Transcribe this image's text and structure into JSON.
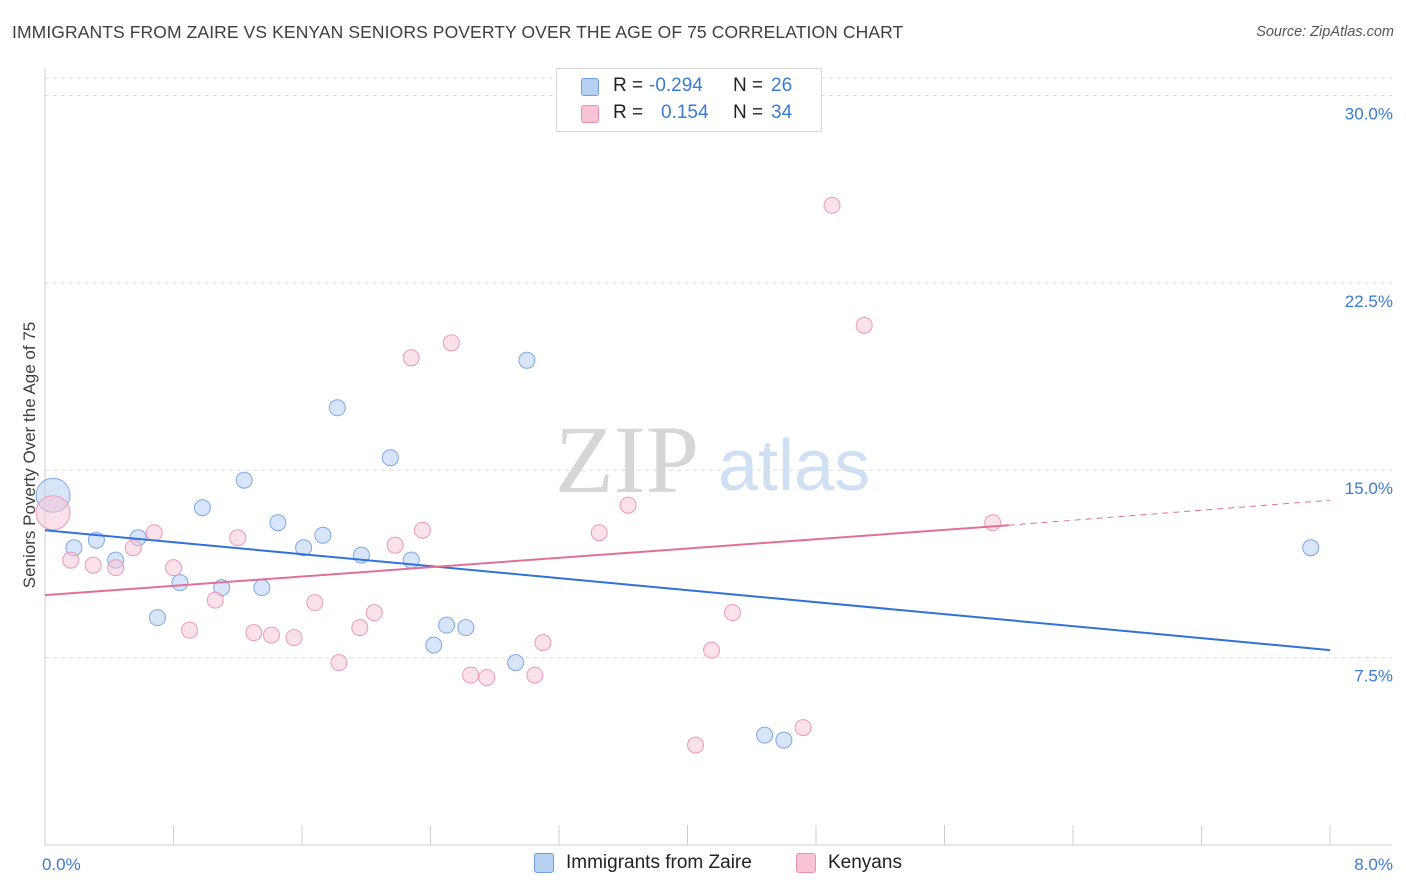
{
  "title": "IMMIGRANTS FROM ZAIRE VS KENYAN SENIORS POVERTY OVER THE AGE OF 75 CORRELATION CHART",
  "source": "Source: ZipAtlas.com",
  "watermark": {
    "zip": "ZIP",
    "atlas": "atlas"
  },
  "colors": {
    "blue_fill": "#b8d0f2",
    "blue_line": "#2f72d8",
    "pink_fill": "#f8c4d4",
    "pink_line": "#e07098",
    "tick_label": "#3a7bd5"
  },
  "stats": {
    "r_label": "R =",
    "n_label": "N =",
    "blue": {
      "r": "-0.294",
      "n": "26"
    },
    "pink": {
      "r": "0.154",
      "n": "34"
    }
  },
  "legend": {
    "blue": "Immigrants from Zaire",
    "pink": "Kenyans"
  },
  "chart_data": {
    "type": "scatter",
    "title": "IMMIGRANTS FROM ZAIRE VS KENYAN SENIORS POVERTY OVER THE AGE OF 75 CORRELATION CHART",
    "xlabel": "",
    "ylabel": "Seniors Poverty Over the Age of 75",
    "xlim": [
      0,
      8
    ],
    "ylim": [
      0,
      31.5
    ],
    "x_tick_labels": [
      "0.0%",
      "8.0%"
    ],
    "x_tick_values": [
      0,
      8
    ],
    "y_tick_labels": [
      "7.5%",
      "15.0%",
      "22.5%",
      "30.0%"
    ],
    "y_tick_values": [
      7.5,
      15.0,
      22.5,
      30.0
    ],
    "grid": true,
    "series": [
      {
        "name": "Immigrants from Zaire",
        "color": "#b8d0f2",
        "r": -0.294,
        "n": 26,
        "trend": {
          "x": [
            0,
            8
          ],
          "y": [
            12.6,
            7.8
          ]
        },
        "points": [
          {
            "x": 0.05,
            "y": 14.0,
            "big": true
          },
          {
            "x": 0.18,
            "y": 11.9
          },
          {
            "x": 0.32,
            "y": 12.2
          },
          {
            "x": 0.44,
            "y": 11.4
          },
          {
            "x": 0.58,
            "y": 12.3
          },
          {
            "x": 0.7,
            "y": 9.1
          },
          {
            "x": 0.84,
            "y": 10.5
          },
          {
            "x": 0.98,
            "y": 13.5
          },
          {
            "x": 1.1,
            "y": 10.3
          },
          {
            "x": 1.24,
            "y": 14.6
          },
          {
            "x": 1.35,
            "y": 10.3
          },
          {
            "x": 1.45,
            "y": 12.9
          },
          {
            "x": 1.61,
            "y": 11.9
          },
          {
            "x": 1.73,
            "y": 12.4
          },
          {
            "x": 1.82,
            "y": 17.5
          },
          {
            "x": 1.97,
            "y": 11.6
          },
          {
            "x": 2.15,
            "y": 15.5
          },
          {
            "x": 2.28,
            "y": 11.4
          },
          {
            "x": 2.42,
            "y": 8.0
          },
          {
            "x": 2.5,
            "y": 8.8
          },
          {
            "x": 2.62,
            "y": 8.7
          },
          {
            "x": 2.93,
            "y": 7.3
          },
          {
            "x": 3.0,
            "y": 19.4
          },
          {
            "x": 4.48,
            "y": 4.4
          },
          {
            "x": 4.6,
            "y": 4.2
          },
          {
            "x": 7.88,
            "y": 11.9
          }
        ]
      },
      {
        "name": "Kenyans",
        "color": "#f8c4d4",
        "r": 0.154,
        "n": 34,
        "trend": {
          "x": [
            0,
            6.0
          ],
          "y": [
            10.0,
            12.8
          ]
        },
        "trend_dashed": {
          "x": [
            6.0,
            8.0
          ],
          "y": [
            12.8,
            13.8
          ]
        },
        "points": [
          {
            "x": 0.05,
            "y": 13.3,
            "big": true
          },
          {
            "x": 0.16,
            "y": 11.4
          },
          {
            "x": 0.3,
            "y": 11.2
          },
          {
            "x": 0.44,
            "y": 11.1
          },
          {
            "x": 0.55,
            "y": 11.9
          },
          {
            "x": 0.68,
            "y": 12.5
          },
          {
            "x": 0.8,
            "y": 11.1
          },
          {
            "x": 0.9,
            "y": 8.6
          },
          {
            "x": 1.06,
            "y": 9.8
          },
          {
            "x": 1.2,
            "y": 12.3
          },
          {
            "x": 1.3,
            "y": 8.5
          },
          {
            "x": 1.41,
            "y": 8.4
          },
          {
            "x": 1.55,
            "y": 8.3
          },
          {
            "x": 1.68,
            "y": 9.7
          },
          {
            "x": 1.83,
            "y": 7.3
          },
          {
            "x": 1.96,
            "y": 8.7
          },
          {
            "x": 2.05,
            "y": 9.3
          },
          {
            "x": 2.18,
            "y": 12.0
          },
          {
            "x": 2.28,
            "y": 19.5
          },
          {
            "x": 2.35,
            "y": 12.6
          },
          {
            "x": 2.53,
            "y": 20.1
          },
          {
            "x": 2.65,
            "y": 6.8
          },
          {
            "x": 2.75,
            "y": 6.7
          },
          {
            "x": 3.05,
            "y": 6.8
          },
          {
            "x": 3.1,
            "y": 8.1
          },
          {
            "x": 3.45,
            "y": 12.5
          },
          {
            "x": 3.63,
            "y": 13.6
          },
          {
            "x": 4.05,
            "y": 4.0
          },
          {
            "x": 4.15,
            "y": 7.8
          },
          {
            "x": 4.28,
            "y": 9.3
          },
          {
            "x": 4.72,
            "y": 4.7
          },
          {
            "x": 4.9,
            "y": 25.6
          },
          {
            "x": 5.1,
            "y": 20.8
          },
          {
            "x": 5.9,
            "y": 12.9
          }
        ]
      }
    ]
  }
}
